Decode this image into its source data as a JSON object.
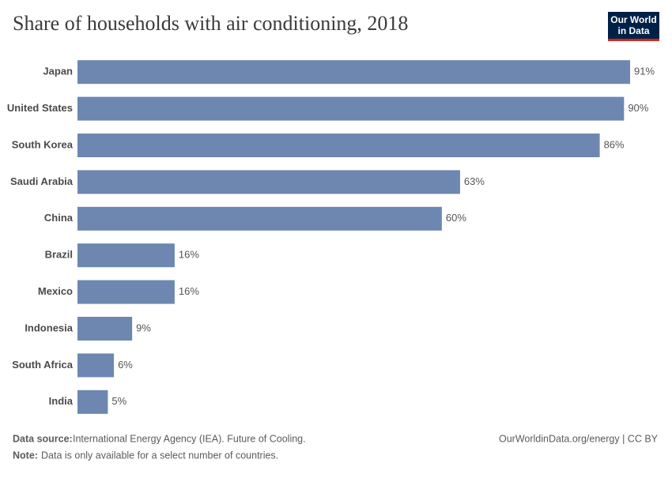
{
  "chart_data": {
    "type": "hbar",
    "title": "Share of households with air conditioning, 2018",
    "categories": [
      "Japan",
      "United States",
      "South Korea",
      "Saudi Arabia",
      "China",
      "Brazil",
      "Mexico",
      "Indonesia",
      "South Africa",
      "India"
    ],
    "values": [
      91,
      90,
      86,
      63,
      60,
      16,
      16,
      9,
      6,
      5
    ],
    "value_labels": [
      "91%",
      "90%",
      "86%",
      "63%",
      "60%",
      "16%",
      "16%",
      "9%",
      "6%",
      "5%"
    ],
    "color": "#6d87b0",
    "logo": [
      "Our World",
      "in Data"
    ],
    "source_label": "Data source:",
    "source": "International Energy Agency (IEA). Future of Cooling.",
    "note_label": "Note:",
    "note": "Data is only available for a select number of countries.",
    "credit": "OurWorldinData.org/energy | CC BY"
  }
}
